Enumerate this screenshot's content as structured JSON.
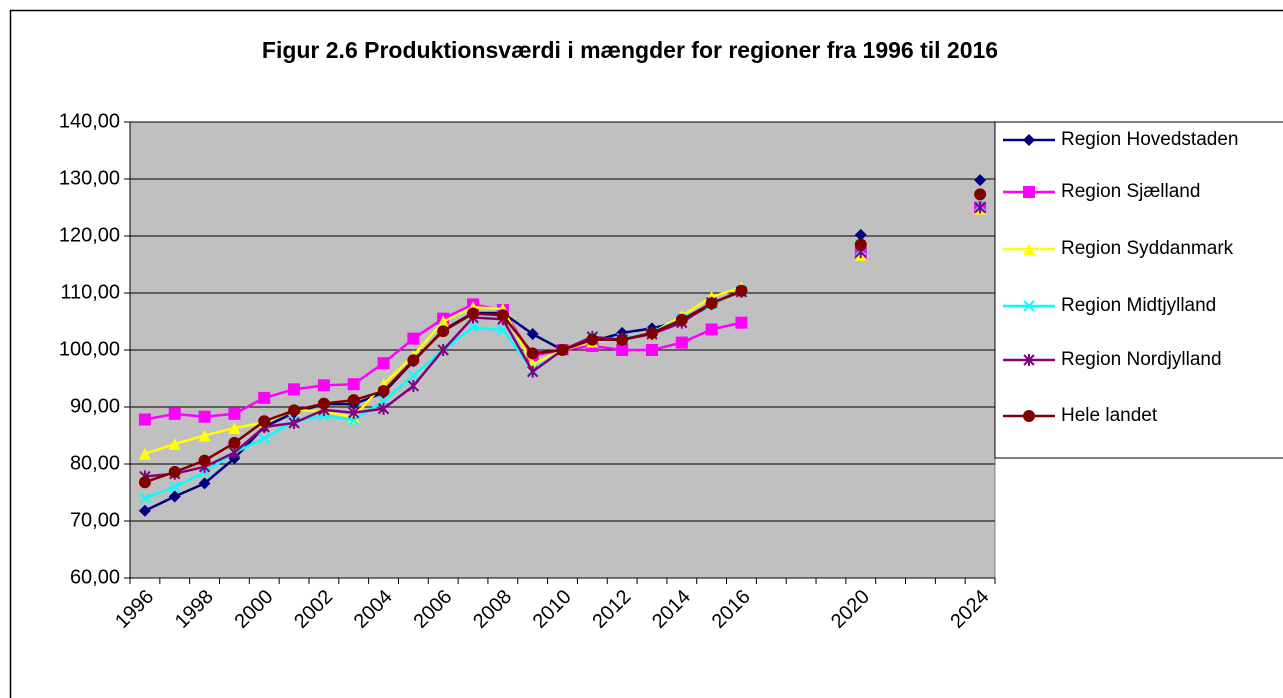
{
  "chart_data": {
    "type": "line",
    "title": "Figur 2.6 Produktionsværdi i mængder for regioner fra 1996 til 2016",
    "categories": [
      "1996",
      null,
      "1998",
      null,
      "2000",
      null,
      "2002",
      null,
      "2004",
      null,
      "2006",
      null,
      "2008",
      null,
      "2010",
      null,
      "2012",
      null,
      "2014",
      null,
      "2016",
      null,
      null,
      null,
      "2020",
      null,
      null,
      null,
      "2024"
    ],
    "ylim": [
      60,
      140
    ],
    "yticks": [
      {
        "value": 60,
        "label": "60,00"
      },
      {
        "value": 70,
        "label": "70,00"
      },
      {
        "value": 80,
        "label": "80,00"
      },
      {
        "value": 90,
        "label": "90,00"
      },
      {
        "value": 100,
        "label": "100,00"
      },
      {
        "value": 110,
        "label": "110,00"
      },
      {
        "value": 120,
        "label": "120,00"
      },
      {
        "value": 130,
        "label": "130,00"
      },
      {
        "value": 140,
        "label": "140,00"
      }
    ],
    "grid": true,
    "legend": "right",
    "series": [
      {
        "name": "Region Hovedstaden",
        "color": "#000080",
        "marker": "diamond",
        "values": [
          71.8,
          74.3,
          76.6,
          81,
          86.5,
          89,
          90.5,
          90.5,
          92.5,
          98,
          103.5,
          106.5,
          106.5,
          102.8,
          100,
          101.5,
          103,
          103.8,
          105,
          108,
          110.5,
          null,
          null,
          null,
          120.2,
          null,
          null,
          null,
          129.8
        ]
      },
      {
        "name": "Region Sjælland",
        "color": "#FF00FF",
        "marker": "square",
        "values": [
          87.8,
          88.8,
          88.3,
          88.8,
          91.6,
          93.1,
          93.8,
          94,
          97.7,
          102,
          105.5,
          108,
          107,
          99,
          100,
          100.7,
          100,
          100,
          101.3,
          103.6,
          104.8,
          null,
          null,
          null,
          117,
          null,
          null,
          null,
          125
        ]
      },
      {
        "name": "Region Syddanmark",
        "color": "#FFFF00",
        "marker": "triangle",
        "values": [
          81.8,
          83.5,
          85,
          86.3,
          87.3,
          89.5,
          89.2,
          88.2,
          94,
          99,
          105,
          107.5,
          107.2,
          97.5,
          100,
          101.5,
          102,
          103,
          106,
          109.3,
          111,
          null,
          null,
          null,
          116.7,
          null,
          null,
          null,
          124.8
        ]
      },
      {
        "name": "Region Midtjylland",
        "color": "#00FFFF",
        "marker": "x",
        "values": [
          74,
          76,
          78.5,
          82,
          84.5,
          87.5,
          88.5,
          87.7,
          91,
          95.5,
          100,
          104,
          103.5,
          96.5,
          100,
          102,
          102,
          103,
          105.5,
          108,
          110.5,
          null,
          null,
          null,
          117.5,
          null,
          null,
          null,
          125.3
        ]
      },
      {
        "name": "Region Nordjylland",
        "color": "#800080",
        "marker": "star",
        "values": [
          77.8,
          78.3,
          79.5,
          82,
          86.5,
          87.2,
          89.5,
          89,
          89.7,
          93.7,
          100,
          105.7,
          105.4,
          96.2,
          100,
          102.3,
          101.8,
          102.8,
          104.8,
          108.3,
          110.2,
          null,
          null,
          null,
          117.2,
          null,
          null,
          null,
          125
        ]
      },
      {
        "name": "Hele landet",
        "color": "#800000",
        "marker": "circle",
        "values": [
          76.8,
          78.6,
          80.6,
          83.7,
          87.5,
          89.4,
          90.6,
          91.2,
          92.8,
          98.2,
          103.3,
          106.4,
          106.1,
          99.4,
          100,
          101.8,
          101.8,
          103,
          105.3,
          108.2,
          110.4,
          null,
          null,
          null,
          118.5,
          null,
          null,
          null,
          127.3
        ]
      }
    ]
  }
}
